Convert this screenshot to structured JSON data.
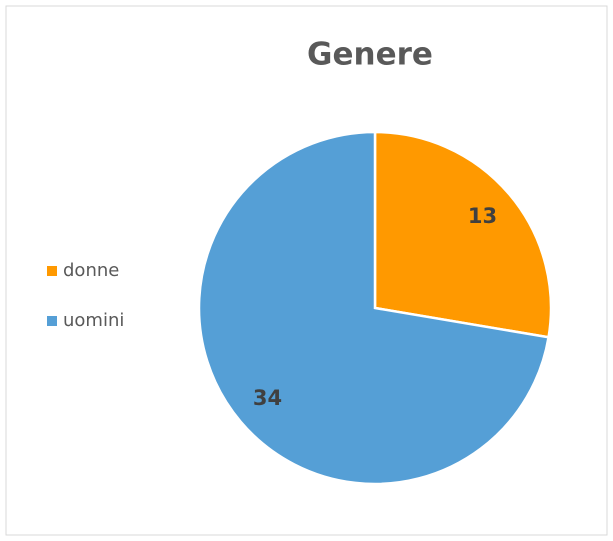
{
  "chart_data": {
    "type": "pie",
    "title": "Genere",
    "categories": [
      "donne",
      "uomini"
    ],
    "values": [
      13,
      34
    ],
    "colors": [
      "#FF9900",
      "#559FD6"
    ],
    "legend": "left"
  }
}
